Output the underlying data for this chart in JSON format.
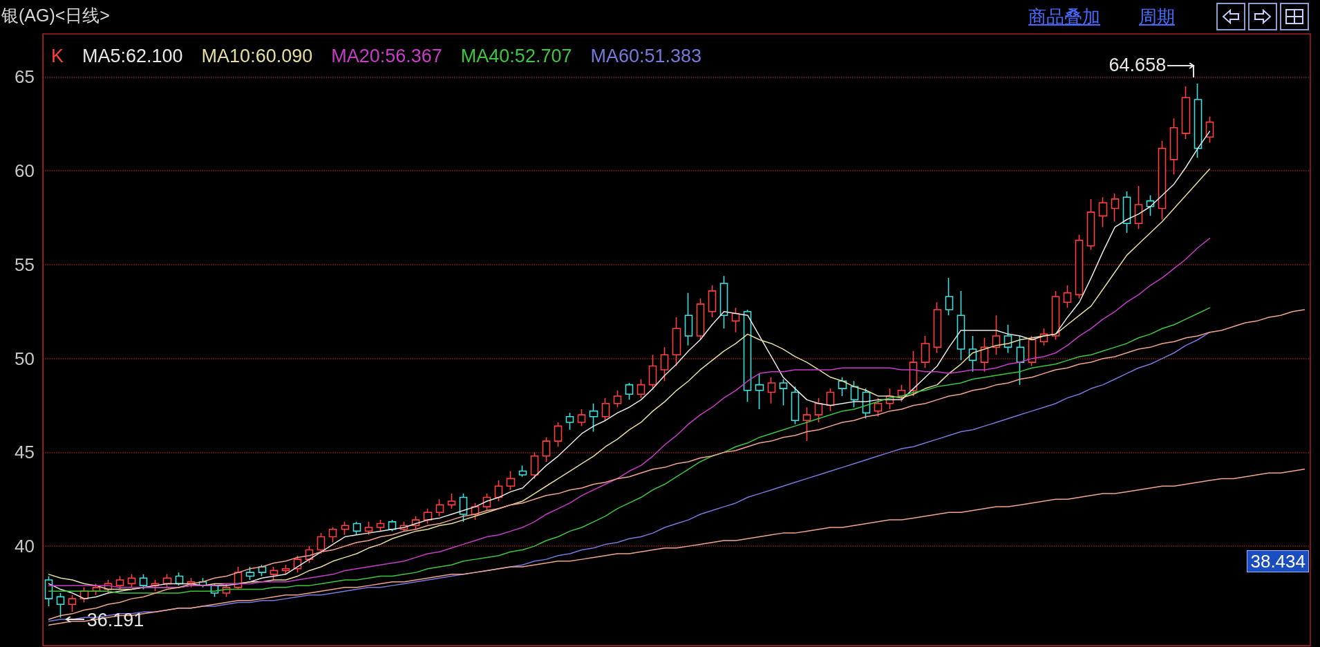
{
  "chart_data": {
    "type": "candlestick",
    "title": "银(AG)<日线>",
    "categories": [
      null,
      null,
      null,
      null,
      null,
      null,
      null,
      null,
      null,
      null,
      null,
      null,
      null,
      null,
      null,
      null,
      null,
      null,
      null,
      null,
      null,
      null,
      null,
      null,
      null,
      null,
      null,
      null,
      null,
      null,
      null,
      null,
      null,
      null,
      null,
      null,
      null,
      null,
      null,
      null,
      null,
      null,
      null,
      null,
      null,
      null,
      null,
      null,
      null,
      null,
      null,
      null,
      null,
      null,
      null,
      null,
      null,
      null,
      null,
      null,
      null,
      null,
      null,
      null,
      null,
      null,
      null,
      null,
      null,
      null,
      null,
      null,
      null,
      null,
      null,
      null,
      null,
      null,
      null,
      null,
      null,
      null,
      null,
      null,
      null,
      null,
      null,
      null,
      null,
      null,
      null,
      null,
      null,
      null,
      null,
      null,
      null,
      null,
      null,
      null,
      null,
      null,
      null,
      null,
      null,
      null,
      null
    ],
    "ylim": [
      34.7,
      67.3
    ],
    "yticks": [
      40,
      45,
      50,
      55,
      60,
      65
    ],
    "grid": "y",
    "legend": "top left",
    "tick_labels": "y",
    "marker": "none",
    "annotations": [
      "商品叠加",
      "周期",
      "64.658",
      {
        "text": "36.191",
        "y": 36.191
      },
      "38.434"
    ],
    "series": [
      {
        "name": "K",
        "color": "#ff4040",
        "ohlc": [
          [
            38.2,
            38.4,
            36.8,
            37.2
          ],
          [
            37.3,
            37.5,
            36.191,
            36.9
          ],
          [
            36.9,
            37.4,
            36.5,
            37.2
          ],
          [
            37.2,
            37.8,
            37.0,
            37.6
          ],
          [
            37.6,
            38.0,
            37.4,
            37.8
          ],
          [
            37.7,
            38.2,
            37.5,
            38.0
          ],
          [
            37.9,
            38.4,
            37.7,
            38.2
          ],
          [
            38.0,
            38.5,
            37.8,
            38.3
          ],
          [
            38.3,
            38.5,
            37.7,
            37.9
          ],
          [
            37.9,
            38.2,
            37.6,
            38.0
          ],
          [
            38.0,
            38.5,
            37.8,
            38.3
          ],
          [
            38.4,
            38.6,
            37.9,
            38.0
          ],
          [
            38.0,
            38.3,
            37.8,
            38.1
          ],
          [
            38.1,
            38.3,
            37.8,
            37.9
          ],
          [
            37.9,
            38.0,
            37.3,
            37.5
          ],
          [
            37.5,
            38.0,
            37.3,
            37.8
          ],
          [
            37.8,
            38.9,
            37.7,
            38.6
          ],
          [
            38.6,
            38.9,
            38.2,
            38.4
          ],
          [
            38.9,
            39.0,
            38.4,
            38.6
          ],
          [
            38.5,
            38.9,
            38.2,
            38.7
          ],
          [
            38.7,
            39.0,
            38.5,
            38.8
          ],
          [
            38.8,
            39.5,
            38.6,
            39.3
          ],
          [
            39.3,
            40.0,
            39.1,
            39.8
          ],
          [
            39.8,
            40.7,
            39.6,
            40.5
          ],
          [
            40.5,
            41.0,
            40.2,
            40.9
          ],
          [
            40.9,
            41.3,
            40.6,
            41.1
          ],
          [
            41.2,
            41.3,
            40.6,
            40.8
          ],
          [
            40.8,
            41.3,
            40.6,
            41.0
          ],
          [
            41.0,
            41.4,
            40.8,
            41.2
          ],
          [
            41.3,
            41.4,
            40.8,
            40.9
          ],
          [
            40.9,
            41.3,
            40.8,
            41.1
          ],
          [
            41.1,
            41.6,
            40.9,
            41.4
          ],
          [
            41.4,
            42.0,
            41.2,
            41.8
          ],
          [
            41.8,
            42.5,
            41.6,
            42.2
          ],
          [
            42.2,
            42.8,
            42.0,
            42.4
          ],
          [
            42.6,
            42.8,
            41.3,
            41.7
          ],
          [
            41.7,
            42.3,
            41.4,
            42.1
          ],
          [
            42.1,
            42.8,
            41.9,
            42.6
          ],
          [
            42.6,
            43.5,
            42.4,
            43.2
          ],
          [
            43.2,
            44.0,
            43.0,
            43.6
          ],
          [
            44.0,
            44.3,
            43.7,
            43.8
          ],
          [
            43.8,
            45.0,
            43.6,
            44.8
          ],
          [
            44.8,
            45.8,
            44.5,
            45.6
          ],
          [
            45.6,
            46.6,
            45.3,
            46.4
          ],
          [
            46.9,
            47.1,
            46.2,
            46.6
          ],
          [
            46.6,
            47.3,
            46.4,
            47.0
          ],
          [
            47.2,
            47.6,
            46.1,
            46.9
          ],
          [
            46.9,
            47.9,
            46.7,
            47.6
          ],
          [
            47.6,
            48.3,
            47.4,
            48.0
          ],
          [
            48.6,
            48.7,
            47.8,
            48.1
          ],
          [
            48.1,
            48.9,
            47.9,
            48.6
          ],
          [
            48.6,
            50.2,
            48.4,
            49.6
          ],
          [
            49.4,
            50.6,
            48.8,
            50.2
          ],
          [
            50.2,
            52.2,
            49.6,
            51.6
          ],
          [
            52.3,
            53.5,
            50.7,
            51.2
          ],
          [
            51.2,
            53.2,
            51.0,
            52.9
          ],
          [
            52.5,
            53.9,
            52.2,
            53.6
          ],
          [
            54.0,
            54.4,
            51.6,
            52.3
          ],
          [
            52.0,
            52.7,
            51.4,
            52.4
          ],
          [
            52.5,
            52.6,
            47.7,
            48.3
          ],
          [
            48.6,
            49.2,
            47.3,
            48.3
          ],
          [
            48.2,
            49.0,
            47.6,
            48.7
          ],
          [
            48.7,
            48.9,
            47.5,
            48.4
          ],
          [
            48.2,
            48.5,
            46.5,
            46.7
          ],
          [
            46.7,
            47.4,
            45.6,
            47.0
          ],
          [
            47.0,
            47.9,
            46.6,
            47.6
          ],
          [
            47.5,
            48.4,
            47.2,
            48.2
          ],
          [
            48.8,
            49.0,
            48.0,
            48.4
          ],
          [
            48.5,
            48.8,
            47.4,
            47.8
          ],
          [
            48.2,
            48.4,
            46.8,
            47.1
          ],
          [
            47.2,
            47.9,
            46.9,
            47.6
          ],
          [
            47.6,
            48.4,
            47.3,
            48.0
          ],
          [
            48.0,
            48.6,
            47.7,
            48.3
          ],
          [
            48.3,
            50.4,
            48.0,
            49.8
          ],
          [
            49.8,
            51.2,
            49.5,
            50.8
          ],
          [
            50.6,
            53.0,
            50.3,
            52.6
          ],
          [
            53.3,
            54.3,
            52.3,
            52.6
          ],
          [
            52.3,
            53.6,
            49.9,
            50.5
          ],
          [
            50.5,
            51.2,
            49.3,
            49.9
          ],
          [
            49.8,
            51.1,
            49.3,
            50.6
          ],
          [
            50.6,
            52.3,
            50.2,
            51.2
          ],
          [
            51.2,
            51.8,
            50.3,
            50.6
          ],
          [
            50.6,
            51.2,
            48.6,
            49.8
          ],
          [
            49.8,
            51.2,
            49.6,
            51.0
          ],
          [
            50.9,
            51.6,
            50.7,
            51.3
          ],
          [
            51.2,
            53.6,
            51.0,
            53.3
          ],
          [
            53.0,
            53.9,
            52.7,
            53.5
          ],
          [
            53.4,
            56.6,
            53.2,
            56.3
          ],
          [
            56.0,
            58.5,
            55.8,
            57.8
          ],
          [
            57.6,
            58.6,
            57.0,
            58.3
          ],
          [
            58.0,
            58.8,
            57.3,
            58.5
          ],
          [
            58.6,
            58.9,
            56.7,
            57.2
          ],
          [
            57.2,
            59.2,
            56.9,
            58.2
          ],
          [
            58.4,
            58.7,
            57.6,
            58.1
          ],
          [
            58.0,
            61.6,
            57.4,
            61.2
          ],
          [
            60.6,
            62.8,
            59.8,
            62.3
          ],
          [
            62.0,
            64.5,
            61.7,
            63.9
          ],
          [
            63.8,
            64.658,
            60.7,
            61.2
          ],
          [
            61.8,
            62.9,
            61.5,
            62.6
          ],
          null,
          null,
          null,
          null,
          null,
          null,
          null,
          null
        ],
        "colors": [
          "#40e0e0",
          "#40e0e0",
          "#ff4040",
          "#ff4040",
          "#ff4040",
          "#ff4040",
          "#ff4040",
          "#ff4040",
          "#40e0e0",
          "#ff4040",
          "#ff4040",
          "#40e0e0",
          "#ff4040",
          "#40e0e0",
          "#40e0e0",
          "#ff4040",
          "#ff4040",
          "#40e0e0",
          "#40e0e0",
          "#ff4040",
          "#ff4040",
          "#ff4040",
          "#ff4040",
          "#ff4040",
          "#ff4040",
          "#ff4040",
          "#40e0e0",
          "#ff4040",
          "#ff4040",
          "#40e0e0",
          "#ff4040",
          "#ff4040",
          "#ff4040",
          "#ff4040",
          "#ff4040",
          "#40e0e0",
          "#ff4040",
          "#ff4040",
          "#ff4040",
          "#ff4040",
          "#40e0e0",
          "#ff4040",
          "#ff4040",
          "#ff4040",
          "#40e0e0",
          "#ff4040",
          "#40e0e0",
          "#ff4040",
          "#ff4040",
          "#40e0e0",
          "#ff4040",
          "#ff4040",
          "#ff4040",
          "#ff4040",
          "#40e0e0",
          "#ff4040",
          "#ff4040",
          "#40e0e0",
          "#ff4040",
          "#40e0e0",
          "#40e0e0",
          "#ff4040",
          "#40e0e0",
          "#40e0e0",
          "#ff4040",
          "#ff4040",
          "#ff4040",
          "#40e0e0",
          "#40e0e0",
          "#40e0e0",
          "#ff4040",
          "#ff4040",
          "#ff4040",
          "#ff4040",
          "#ff4040",
          "#ff4040",
          "#40e0e0",
          "#40e0e0",
          "#40e0e0",
          "#ff4040",
          "#ff4040",
          "#40e0e0",
          "#40e0e0",
          "#ff4040",
          "#ff4040",
          "#ff4040",
          "#ff4040",
          "#ff4040",
          "#ff4040",
          "#ff4040",
          "#ff4040",
          "#40e0e0",
          "#ff4040",
          "#40e0e0",
          "#ff4040",
          "#ff4040",
          "#ff4040",
          "#40e0e0",
          "#ff4040",
          null,
          null,
          null,
          null,
          null,
          null,
          null,
          null
        ]
      },
      {
        "name": "MA5:62.100",
        "type": "line",
        "color": "#e8e8e8",
        "values": [
          38.0,
          37.7,
          37.5,
          37.2,
          37.3,
          37.5,
          37.6,
          37.7,
          37.8,
          37.9,
          38.0,
          38.0,
          38.0,
          37.9,
          37.9,
          37.9,
          38.0,
          38.1,
          38.3,
          38.4,
          38.5,
          38.9,
          39.3,
          39.7,
          40.1,
          40.5,
          40.6,
          40.7,
          40.8,
          40.9,
          41.0,
          41.2,
          41.4,
          41.5,
          41.7,
          41.9,
          42.1,
          42.4,
          42.6,
          42.9,
          43.1,
          43.7,
          44.3,
          44.8,
          45.4,
          46.0,
          46.4,
          46.7,
          47.1,
          47.4,
          47.8,
          48.4,
          49.1,
          49.7,
          50.4,
          51.0,
          51.8,
          52.5,
          52.4,
          52.3,
          51.2,
          50.1,
          49.0,
          48.4,
          47.8,
          47.6,
          47.5,
          47.6,
          47.7,
          47.7,
          47.8,
          47.8,
          47.8,
          48.4,
          49.0,
          49.6,
          50.6,
          51.5,
          51.5,
          51.5,
          51.5,
          51.3,
          51.2,
          51.0,
          51.2,
          51.3,
          52.2,
          53.0,
          54.3,
          55.7,
          57.0,
          57.4,
          57.7,
          58.1,
          58.7,
          59.3,
          60.2,
          61.2,
          62.1,
          null,
          null,
          null,
          null,
          null,
          null,
          null,
          null
        ]
      },
      {
        "name": "MA10:60.090",
        "type": "line",
        "color": "#e8df9c",
        "values": [
          38.5,
          38.3,
          38.2,
          38.0,
          37.9,
          37.7,
          37.7,
          37.7,
          37.8,
          37.8,
          37.8,
          37.8,
          37.9,
          37.9,
          38.0,
          38.0,
          38.0,
          38.1,
          38.1,
          38.2,
          38.2,
          38.4,
          38.7,
          38.9,
          39.2,
          39.4,
          39.6,
          39.9,
          40.1,
          40.4,
          40.6,
          40.8,
          40.9,
          41.1,
          41.2,
          41.4,
          41.6,
          41.8,
          42.0,
          42.2,
          42.4,
          42.8,
          43.2,
          43.6,
          44.0,
          44.4,
          44.8,
          45.3,
          45.7,
          46.2,
          46.6,
          47.2,
          47.7,
          48.3,
          48.8,
          49.4,
          49.9,
          50.4,
          50.8,
          51.3,
          51.0,
          50.8,
          50.5,
          50.1,
          49.8,
          49.4,
          49.0,
          48.8,
          48.5,
          48.3,
          48.0,
          48.0,
          47.9,
          48.1,
          48.4,
          48.6,
          49.2,
          49.7,
          50.3,
          50.5,
          50.7,
          50.8,
          51.0,
          51.1,
          51.2,
          51.3,
          51.8,
          52.3,
          52.8,
          53.7,
          54.6,
          55.5,
          56.1,
          56.7,
          57.3,
          58.0,
          58.7,
          59.4,
          60.1,
          null,
          null,
          null,
          null,
          null,
          null,
          null,
          null
        ]
      },
      {
        "name": "MA20:56.367",
        "type": "line",
        "color": "#c83cc8",
        "values": [
          37.9,
          37.9,
          37.9,
          37.9,
          37.9,
          37.9,
          37.8,
          37.8,
          37.8,
          37.8,
          37.8,
          37.8,
          37.9,
          37.9,
          37.9,
          38.0,
          38.0,
          38.0,
          38.1,
          38.1,
          38.1,
          38.2,
          38.3,
          38.4,
          38.5,
          38.7,
          38.8,
          38.9,
          39.0,
          39.1,
          39.2,
          39.4,
          39.6,
          39.7,
          39.9,
          40.1,
          40.3,
          40.5,
          40.6,
          40.8,
          41.0,
          41.3,
          41.7,
          42.0,
          42.3,
          42.7,
          43.0,
          43.3,
          43.6,
          44.0,
          44.3,
          44.8,
          45.4,
          45.9,
          46.5,
          47.0,
          47.4,
          47.9,
          48.3,
          48.8,
          49.2,
          49.3,
          49.3,
          49.4,
          49.4,
          49.4,
          49.4,
          49.5,
          49.5,
          49.5,
          49.5,
          49.5,
          49.4,
          49.4,
          49.3,
          49.3,
          49.2,
          49.3,
          49.4,
          49.4,
          49.5,
          49.7,
          49.8,
          50.0,
          50.1,
          50.3,
          50.7,
          51.2,
          51.6,
          52.1,
          52.5,
          53.0,
          53.4,
          53.9,
          54.3,
          54.8,
          55.3,
          55.9,
          56.4,
          null,
          null,
          null,
          null,
          null,
          null,
          null,
          null
        ]
      },
      {
        "name": "MA40:52.707",
        "type": "line",
        "color": "#3cc83c",
        "values": [
          37.6,
          37.6,
          37.6,
          37.6,
          37.6,
          37.6,
          37.5,
          37.5,
          37.5,
          37.5,
          37.5,
          37.5,
          37.6,
          37.6,
          37.6,
          37.7,
          37.7,
          37.7,
          37.7,
          37.8,
          37.8,
          37.9,
          37.9,
          38.0,
          38.1,
          38.2,
          38.2,
          38.3,
          38.4,
          38.4,
          38.5,
          38.6,
          38.8,
          38.9,
          39.0,
          39.2,
          39.3,
          39.4,
          39.5,
          39.7,
          39.8,
          40.0,
          40.3,
          40.5,
          40.8,
          41.0,
          41.3,
          41.6,
          42.0,
          42.3,
          42.6,
          43.0,
          43.3,
          43.7,
          44.1,
          44.5,
          44.8,
          45.0,
          45.3,
          45.5,
          45.8,
          46.0,
          46.2,
          46.4,
          46.6,
          46.8,
          47.0,
          47.2,
          47.3,
          47.5,
          47.7,
          47.9,
          48.0,
          48.2,
          48.3,
          48.5,
          48.6,
          48.7,
          48.9,
          49.0,
          49.1,
          49.2,
          49.3,
          49.5,
          49.6,
          49.7,
          49.9,
          50.1,
          50.2,
          50.4,
          50.6,
          50.8,
          51.1,
          51.3,
          51.6,
          51.8,
          52.1,
          52.4,
          52.7,
          null,
          null,
          null,
          null,
          null,
          null,
          null,
          null
        ]
      },
      {
        "name": "MA60:51.383",
        "type": "line",
        "color": "#7878dc",
        "values": [
          36.0,
          36.1,
          36.1,
          36.2,
          36.2,
          36.3,
          36.4,
          36.4,
          36.5,
          36.5,
          36.6,
          36.7,
          36.7,
          36.8,
          36.8,
          36.9,
          37.0,
          37.0,
          37.1,
          37.1,
          37.2,
          37.3,
          37.4,
          37.4,
          37.5,
          37.6,
          37.7,
          37.8,
          37.8,
          37.9,
          38.0,
          38.1,
          38.2,
          38.3,
          38.4,
          38.5,
          38.6,
          38.7,
          38.8,
          38.9,
          39.0,
          39.2,
          39.3,
          39.5,
          39.6,
          39.8,
          39.9,
          40.1,
          40.2,
          40.4,
          40.5,
          40.7,
          41.0,
          41.2,
          41.4,
          41.7,
          41.9,
          42.1,
          42.3,
          42.6,
          42.8,
          43.0,
          43.2,
          43.4,
          43.6,
          43.8,
          44.0,
          44.2,
          44.4,
          44.6,
          44.8,
          45.0,
          45.2,
          45.3,
          45.5,
          45.7,
          45.9,
          46.1,
          46.2,
          46.4,
          46.6,
          46.8,
          47.0,
          47.2,
          47.4,
          47.6,
          47.9,
          48.1,
          48.4,
          48.6,
          48.9,
          49.2,
          49.5,
          49.7,
          50.0,
          50.3,
          50.7,
          51.0,
          51.4,
          null,
          null,
          null,
          null,
          null,
          null,
          null,
          null
        ]
      },
      {
        "type": "line",
        "color": "#f2a58e",
        "values": [
          36.1,
          36.3,
          36.4,
          36.6,
          36.7,
          36.9,
          37.0,
          37.2,
          37.3,
          37.5,
          37.7,
          37.8,
          38.0,
          38.1,
          38.3,
          38.4,
          38.6,
          38.8,
          38.9,
          39.1,
          39.2,
          39.4,
          39.5,
          39.7,
          39.8,
          40.0,
          40.2,
          40.3,
          40.5,
          40.6,
          40.8,
          40.9,
          41.1,
          41.2,
          41.4,
          41.6,
          41.7,
          41.9,
          42.0,
          42.2,
          42.3,
          42.5,
          42.7,
          42.8,
          43.0,
          43.1,
          43.3,
          43.4,
          43.6,
          43.7,
          43.9,
          44.1,
          44.2,
          44.4,
          44.5,
          44.7,
          44.8,
          45.0,
          45.1,
          45.3,
          45.5,
          45.6,
          45.8,
          45.9,
          46.1,
          46.2,
          46.4,
          46.6,
          46.7,
          46.9,
          47.0,
          47.2,
          47.3,
          47.5,
          47.6,
          47.8,
          48.0,
          48.1,
          48.3,
          48.4,
          48.6,
          48.7,
          48.9,
          49.0,
          49.2,
          49.4,
          49.5,
          49.7,
          49.8,
          50.0,
          50.1,
          50.3,
          50.5,
          50.6,
          50.8,
          50.9,
          51.1,
          51.2,
          51.4,
          51.5,
          51.7,
          51.9,
          52.0,
          52.2,
          52.3,
          52.5,
          52.6
        ]
      },
      {
        "type": "line",
        "color": "#f2a58e",
        "values": [
          35.8,
          35.9,
          36.0,
          36.0,
          36.1,
          36.2,
          36.3,
          36.3,
          36.4,
          36.5,
          36.6,
          36.7,
          36.7,
          36.8,
          36.9,
          37.0,
          37.1,
          37.1,
          37.2,
          37.3,
          37.4,
          37.4,
          37.5,
          37.6,
          37.7,
          37.8,
          37.8,
          37.9,
          38.0,
          38.1,
          38.1,
          38.2,
          38.3,
          38.4,
          38.5,
          38.5,
          38.6,
          38.7,
          38.8,
          38.9,
          38.9,
          39.0,
          39.1,
          39.2,
          39.2,
          39.3,
          39.4,
          39.5,
          39.6,
          39.6,
          39.7,
          39.8,
          39.9,
          39.9,
          40.0,
          40.1,
          40.2,
          40.3,
          40.3,
          40.4,
          40.5,
          40.6,
          40.7,
          40.7,
          40.8,
          40.9,
          41.0,
          41.0,
          41.1,
          41.2,
          41.3,
          41.4,
          41.4,
          41.5,
          41.6,
          41.7,
          41.8,
          41.8,
          41.9,
          42.0,
          42.1,
          42.1,
          42.2,
          42.3,
          42.4,
          42.5,
          42.5,
          42.6,
          42.7,
          42.8,
          42.8,
          42.9,
          43.0,
          43.1,
          43.2,
          43.2,
          43.3,
          43.4,
          43.5,
          43.6,
          43.6,
          43.7,
          43.8,
          43.9,
          43.9,
          44.0,
          44.1
        ]
      }
    ]
  }
}
